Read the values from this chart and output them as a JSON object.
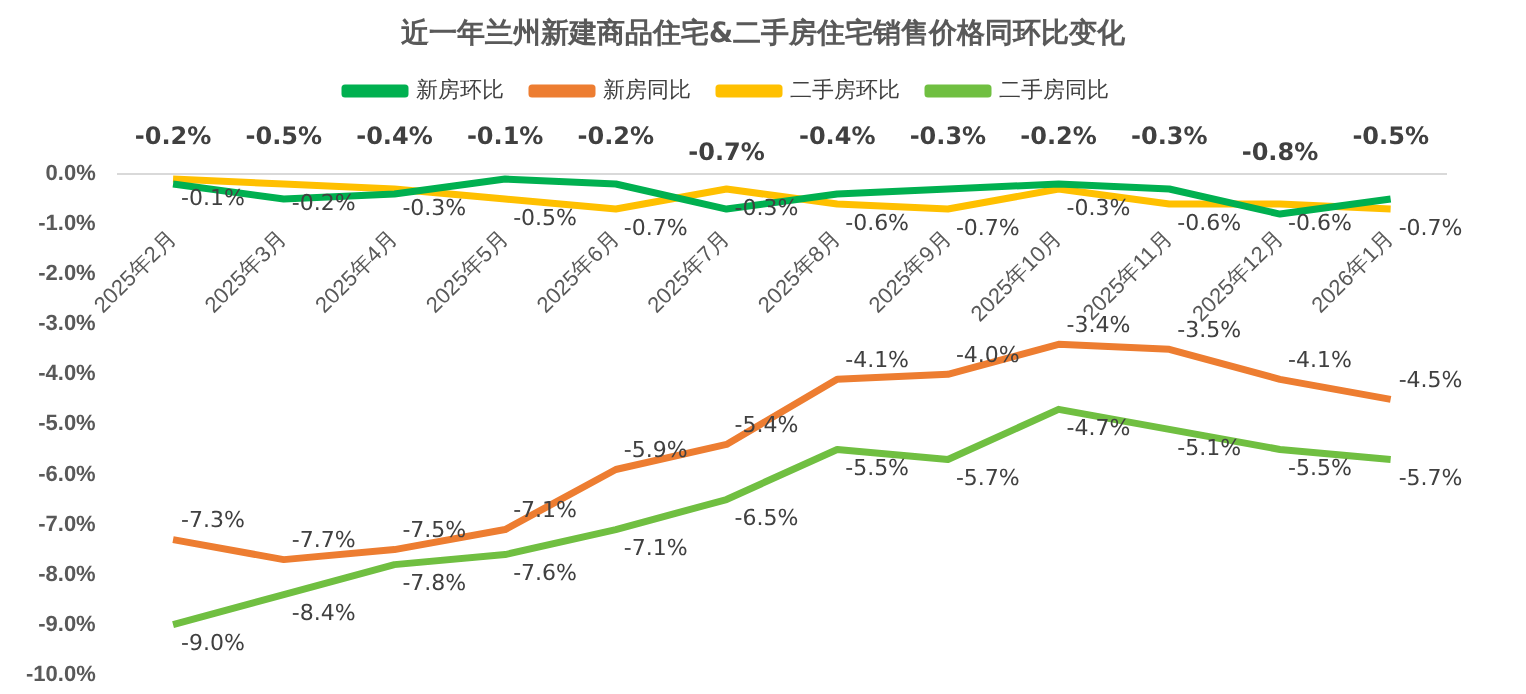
{
  "chart_data": {
    "type": "line",
    "title": "近一年兰州新建商品住宅&二手房住宅销售价格同环比变化",
    "categories": [
      "2025年2月",
      "2025年3月",
      "2025年4月",
      "2025年5月",
      "2025年6月",
      "2025年7月",
      "2025年8月",
      "2025年9月",
      "2025年10月",
      "2025年11月",
      "2025年12月",
      "2026年1月"
    ],
    "series": [
      {
        "name": "新房环比",
        "color": "#00b050",
        "values": [
          -0.2,
          -0.5,
          -0.4,
          -0.1,
          -0.2,
          -0.7,
          -0.4,
          -0.3,
          -0.2,
          -0.3,
          -0.8,
          -0.5
        ],
        "value_labels": [
          "-0.2%",
          "-0.5%",
          "-0.4%",
          "-0.1%",
          "-0.2%",
          "-0.7%",
          "-0.4%",
          "-0.3%",
          "-0.2%",
          "-0.3%",
          "-0.8%",
          "-0.5%"
        ]
      },
      {
        "name": "新房同比",
        "color": "#ed7d31",
        "values": [
          -7.3,
          -7.7,
          -7.5,
          -7.1,
          -5.9,
          -5.4,
          -4.1,
          -4.0,
          -3.4,
          -3.5,
          -4.1,
          -4.5
        ],
        "value_labels": [
          "-7.3%",
          "-7.7%",
          "-7.5%",
          "-7.1%",
          "-5.9%",
          "-5.4%",
          "-4.1%",
          "-4.0%",
          "-3.4%",
          "-3.5%",
          "-4.1%",
          "-4.5%"
        ]
      },
      {
        "name": "二手房环比",
        "color": "#ffc000",
        "values": [
          -0.1,
          -0.2,
          -0.3,
          -0.5,
          -0.7,
          -0.3,
          -0.6,
          -0.7,
          -0.3,
          -0.6,
          -0.6,
          -0.7
        ],
        "value_labels": [
          "-0.1%",
          "-0.2%",
          "-0.3%",
          "-0.5%",
          "-0.7%",
          "-0.3%",
          "-0.6%",
          "-0.7%",
          "-0.3%",
          "-0.6%",
          "-0.6%",
          "-0.7%"
        ]
      },
      {
        "name": "二手房同比",
        "color": "#70bf41",
        "values": [
          -9.0,
          -8.4,
          -7.8,
          -7.6,
          -7.1,
          -6.5,
          -5.5,
          -5.7,
          -4.7,
          -5.1,
          -5.5,
          -5.7
        ],
        "value_labels": [
          "-9.0%",
          "-8.4%",
          "-7.8%",
          "-7.6%",
          "-7.1%",
          "-6.5%",
          "-5.5%",
          "-5.7%",
          "-4.7%",
          "-5.1%",
          "-5.5%",
          "-5.7%"
        ]
      }
    ],
    "ylim": [
      -10,
      0
    ],
    "yticks": [
      {
        "value": 0,
        "label": "0.0%"
      },
      {
        "value": -1,
        "label": "-1.0%"
      },
      {
        "value": -2,
        "label": "-2.0%"
      },
      {
        "value": -3,
        "label": "-3.0%"
      },
      {
        "value": -4,
        "label": "-4.0%"
      },
      {
        "value": -5,
        "label": "-5.0%"
      },
      {
        "value": -6,
        "label": "-6.0%"
      },
      {
        "value": -7,
        "label": "-7.0%"
      },
      {
        "value": -8,
        "label": "-8.0%"
      },
      {
        "value": -9,
        "label": "-9.0%"
      },
      {
        "value": -10,
        "label": "-10.0%"
      }
    ],
    "legend": "top",
    "marker": "none",
    "line_style": "solid",
    "grid": false
  }
}
